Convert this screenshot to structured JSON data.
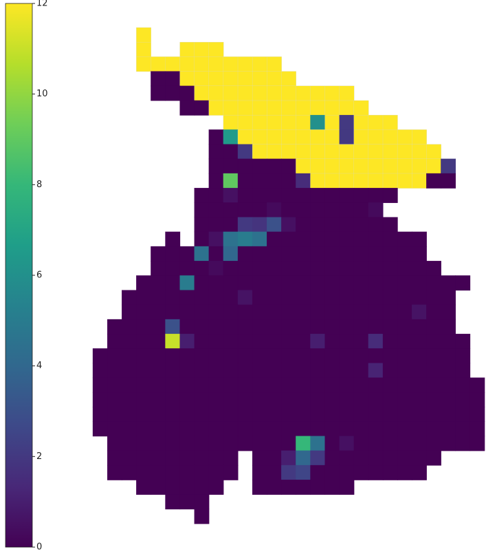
{
  "chart_data": {
    "type": "heatmap",
    "colormap": "viridis",
    "clim": [
      0,
      12
    ],
    "cticks": [
      0,
      2,
      4,
      6,
      8,
      10,
      12
    ],
    "z": [
      [
        null,
        null,
        null,
        12,
        null,
        null,
        null,
        null,
        null,
        null,
        null,
        null,
        null,
        null,
        null,
        null,
        null,
        null,
        null,
        null,
        null,
        null,
        null,
        null,
        null,
        null,
        null
      ],
      [
        null,
        null,
        null,
        12,
        null,
        null,
        12,
        12,
        12,
        null,
        null,
        null,
        null,
        null,
        null,
        null,
        null,
        null,
        null,
        null,
        null,
        null,
        null,
        null,
        null,
        null,
        null
      ],
      [
        null,
        null,
        null,
        12,
        12,
        12,
        12,
        12,
        12,
        12,
        12,
        12,
        12,
        null,
        null,
        null,
        null,
        null,
        null,
        null,
        null,
        null,
        null,
        null,
        null,
        null,
        null
      ],
      [
        null,
        null,
        null,
        null,
        0,
        0,
        12,
        12,
        12,
        12,
        12,
        12,
        12,
        12,
        null,
        null,
        null,
        null,
        null,
        null,
        null,
        null,
        null,
        null,
        null,
        null,
        null
      ],
      [
        null,
        null,
        null,
        null,
        0,
        0,
        0,
        12,
        12,
        12,
        12,
        12,
        12,
        12,
        12,
        12,
        12,
        12,
        null,
        null,
        null,
        null,
        null,
        null,
        null,
        null,
        null
      ],
      [
        null,
        null,
        null,
        null,
        null,
        null,
        0,
        0,
        12,
        12,
        12,
        12,
        12,
        12,
        12,
        12,
        12,
        12,
        12,
        null,
        null,
        null,
        null,
        null,
        null,
        null,
        null
      ],
      [
        null,
        null,
        null,
        null,
        null,
        null,
        null,
        null,
        null,
        12,
        12,
        12,
        12,
        12,
        12,
        6,
        12,
        2,
        12,
        12,
        12,
        null,
        null,
        null,
        null,
        null,
        null
      ],
      [
        null,
        null,
        null,
        null,
        null,
        null,
        null,
        null,
        0,
        6.5,
        12,
        12,
        12,
        12,
        12,
        12,
        12,
        2,
        12,
        12,
        12,
        12,
        12,
        null,
        null,
        null,
        null
      ],
      [
        null,
        null,
        null,
        null,
        null,
        null,
        null,
        null,
        0,
        0,
        2,
        12,
        12,
        12,
        12,
        12,
        12,
        12,
        12,
        12,
        12,
        12,
        12,
        12,
        null,
        null,
        null
      ],
      [
        null,
        null,
        null,
        null,
        null,
        null,
        null,
        null,
        0,
        0,
        0,
        0,
        0,
        0,
        12,
        12,
        12,
        12,
        12,
        12,
        12,
        12,
        12,
        12,
        2,
        null,
        null
      ],
      [
        null,
        null,
        null,
        null,
        null,
        null,
        null,
        null,
        0,
        9,
        0,
        0,
        0,
        0,
        1.5,
        12,
        12,
        12,
        12,
        12,
        12,
        12,
        12,
        0,
        0,
        null,
        null
      ],
      [
        null,
        null,
        null,
        null,
        null,
        null,
        null,
        0,
        0,
        0.5,
        0,
        0,
        0,
        0,
        0,
        0,
        0,
        0,
        0,
        0,
        0,
        null,
        null,
        null,
        null,
        null,
        null
      ],
      [
        null,
        null,
        null,
        null,
        null,
        null,
        null,
        0,
        0,
        0,
        0,
        0,
        0.3,
        0,
        0,
        0,
        0,
        0,
        0,
        0.3,
        null,
        null,
        null,
        null,
        null,
        null,
        null
      ],
      [
        null,
        null,
        null,
        null,
        null,
        null,
        null,
        0,
        0,
        0,
        2,
        1.8,
        3,
        0.5,
        0,
        0,
        0,
        0,
        0,
        0,
        0,
        null,
        null,
        null,
        null,
        null,
        null
      ],
      [
        null,
        null,
        null,
        null,
        null,
        0,
        null,
        0,
        0.5,
        4.5,
        5,
        4.5,
        0,
        0,
        0,
        0,
        0,
        0,
        0,
        0,
        0,
        0,
        0,
        null,
        null,
        null,
        null
      ],
      [
        null,
        null,
        null,
        null,
        0,
        0,
        0,
        4.5,
        0,
        4,
        0,
        0,
        0,
        0,
        0,
        0,
        0,
        0,
        0,
        0,
        0,
        0,
        0,
        null,
        null,
        null,
        null
      ],
      [
        null,
        null,
        null,
        null,
        0,
        0,
        0,
        0,
        0.3,
        0,
        0,
        0,
        0,
        0,
        0,
        0,
        0,
        0,
        0,
        0,
        0,
        0,
        0,
        0,
        null,
        null,
        null
      ],
      [
        null,
        null,
        null,
        0,
        0,
        0,
        5,
        0,
        0,
        0,
        0,
        0,
        0,
        0,
        0,
        0,
        0,
        0,
        0,
        0,
        0,
        0,
        0,
        0,
        0,
        0,
        null
      ],
      [
        null,
        null,
        0,
        0,
        0,
        0,
        0,
        0,
        0,
        0,
        0.6,
        0,
        0,
        0,
        0,
        0,
        0,
        0,
        0,
        0,
        0,
        0,
        0,
        0,
        0,
        null,
        null
      ],
      [
        null,
        null,
        0,
        0,
        0,
        0,
        0,
        0,
        0,
        0,
        0,
        0,
        0,
        0,
        0,
        0,
        0,
        0,
        0,
        0,
        0,
        0,
        0.6,
        0,
        0,
        null,
        null
      ],
      [
        null,
        0,
        0,
        0,
        0,
        3,
        0,
        0,
        0,
        0,
        0,
        0,
        0,
        0,
        0,
        0,
        0,
        0,
        0,
        0,
        0,
        0,
        0,
        0,
        0,
        null,
        null
      ],
      [
        null,
        0,
        0,
        0,
        0,
        11,
        1,
        0,
        0,
        0,
        0,
        0,
        0,
        0,
        0,
        1,
        0,
        0,
        0,
        1.5,
        0,
        0,
        0,
        0,
        0,
        0,
        null
      ],
      [
        0,
        0,
        0,
        0,
        0,
        0,
        0,
        0,
        0,
        0,
        0,
        0,
        0,
        0,
        0,
        0,
        0,
        0,
        0,
        0,
        0,
        0,
        0,
        0,
        0,
        0,
        null
      ],
      [
        0,
        0,
        0,
        0,
        0,
        0,
        0,
        0,
        0,
        0,
        0,
        0,
        0,
        0,
        0,
        0,
        0,
        0,
        0,
        1.2,
        0,
        0,
        0,
        0,
        0,
        0,
        null
      ],
      [
        0,
        0,
        0,
        0,
        0,
        0,
        0,
        0,
        0,
        0,
        0,
        0,
        0,
        0,
        0,
        0,
        0,
        0,
        0,
        0,
        0,
        0,
        0,
        0,
        0,
        0,
        0
      ],
      [
        0,
        0,
        0,
        0,
        0,
        0,
        0,
        0,
        0,
        0,
        0,
        0,
        0,
        0,
        0,
        0,
        0,
        0,
        0,
        0,
        0,
        0,
        0,
        0,
        0,
        0,
        0
      ],
      [
        0,
        0,
        0,
        0,
        0,
        0,
        0,
        0,
        0,
        0,
        0,
        0,
        0,
        0,
        0,
        0,
        0,
        0,
        0,
        0,
        0,
        0,
        0,
        0,
        0,
        0,
        0
      ],
      [
        0,
        0,
        0,
        0,
        0,
        0,
        0,
        0,
        0,
        0,
        0,
        0,
        0,
        0,
        0,
        0,
        0,
        0,
        0,
        0,
        0,
        0,
        0,
        0,
        0,
        0,
        0
      ],
      [
        null,
        0,
        0,
        0,
        0,
        0,
        0,
        0,
        0,
        0,
        0,
        0,
        0,
        0,
        8,
        4.5,
        0,
        0.5,
        0,
        0,
        0,
        0,
        0,
        0,
        0,
        0,
        0
      ],
      [
        null,
        0,
        0,
        0,
        0,
        0,
        0,
        0,
        0,
        0,
        null,
        0,
        0,
        1,
        4,
        2,
        0,
        0,
        0,
        0,
        0,
        0,
        0,
        0,
        null,
        null,
        null
      ],
      [
        null,
        0,
        0,
        0,
        0,
        0,
        0,
        0,
        0,
        0,
        null,
        0,
        0,
        2,
        2.5,
        0,
        0,
        0,
        0,
        0,
        0,
        0,
        0,
        null,
        null,
        null,
        null
      ],
      [
        null,
        null,
        null,
        0,
        0,
        0,
        0,
        0,
        0,
        null,
        null,
        0,
        0,
        0,
        0,
        0,
        0,
        0,
        null,
        null,
        null,
        null,
        null,
        null,
        null,
        null,
        null
      ],
      [
        null,
        null,
        null,
        null,
        null,
        0,
        0,
        0,
        null,
        null,
        null,
        null,
        null,
        null,
        null,
        null,
        null,
        null,
        null,
        null,
        null,
        null,
        null,
        null,
        null,
        null,
        null
      ],
      [
        null,
        null,
        null,
        null,
        null,
        null,
        null,
        0,
        null,
        null,
        null,
        null,
        null,
        null,
        null,
        null,
        null,
        null,
        null,
        null,
        null,
        null,
        null,
        null,
        null,
        null,
        null
      ]
    ]
  }
}
